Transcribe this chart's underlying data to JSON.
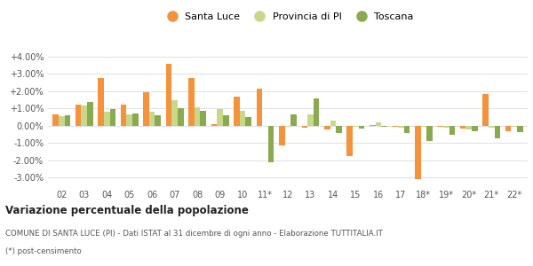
{
  "categories": [
    "02",
    "03",
    "04",
    "05",
    "06",
    "07",
    "08",
    "09",
    "10",
    "11*",
    "12",
    "13",
    "14",
    "15",
    "16",
    "17",
    "18*",
    "19*",
    "20*",
    "21*",
    "22*"
  ],
  "santa_luce": [
    0.65,
    1.2,
    2.75,
    1.2,
    1.95,
    3.6,
    2.75,
    0.1,
    1.7,
    2.15,
    -1.15,
    -0.1,
    -0.2,
    -1.75,
    0.05,
    -0.05,
    -3.1,
    -0.05,
    -0.15,
    1.85,
    -0.3
  ],
  "provincia_pi": [
    0.55,
    1.15,
    0.8,
    0.65,
    0.8,
    1.5,
    1.05,
    0.95,
    0.85,
    0.0,
    -0.05,
    0.65,
    0.3,
    -0.05,
    0.2,
    -0.1,
    -0.05,
    -0.1,
    -0.2,
    -0.1,
    -0.05
  ],
  "toscana": [
    0.6,
    1.35,
    0.95,
    0.7,
    0.6,
    1.0,
    0.85,
    0.6,
    0.5,
    -2.1,
    0.65,
    1.6,
    -0.4,
    -0.15,
    -0.05,
    -0.4,
    -0.9,
    -0.55,
    -0.3,
    -0.75,
    -0.35
  ],
  "color_santa_luce": "#f5923c",
  "color_provincia": "#c8d88a",
  "color_toscana": "#8aaa50",
  "ylim": [
    -3.5,
    4.5
  ],
  "yticks": [
    -3.0,
    -2.0,
    -1.0,
    0.0,
    1.0,
    2.0,
    3.0,
    4.0
  ],
  "ytick_labels": [
    "-3.00%",
    "-2.00%",
    "-1.00%",
    "0.00%",
    "+1.00%",
    "+2.00%",
    "+3.00%",
    "+4.00%"
  ],
  "title_bold": "Variazione percentuale della popolazione",
  "caption1": "COMUNE DI SANTA LUCE (PI) - Dati ISTAT al 31 dicembre di ogni anno - Elaborazione TUTTITALIA.IT",
  "caption2": "(*) post-censimento",
  "legend_labels": [
    "Santa Luce",
    "Provincia di PI",
    "Toscana"
  ],
  "bg_color": "#ffffff",
  "grid_color": "#e0e0e0"
}
